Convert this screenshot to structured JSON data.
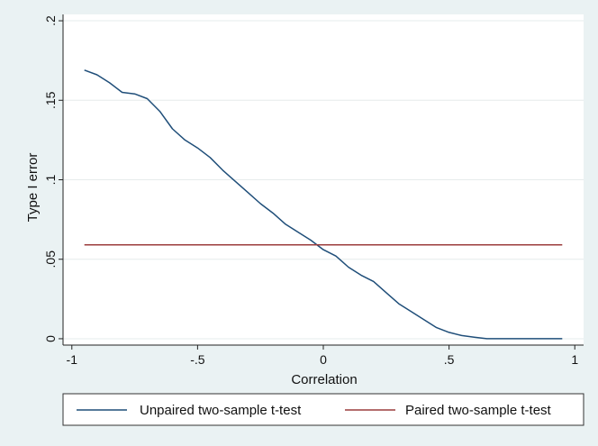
{
  "chart_data": {
    "type": "line",
    "xlabel": "Correlation",
    "ylabel": "Type I error",
    "xlim": [
      -1,
      1
    ],
    "ylim": [
      0,
      0.2
    ],
    "x_ticks": [
      -1,
      -0.5,
      0,
      0.5,
      1
    ],
    "x_tick_labels": [
      "-1",
      "-.5",
      "0",
      ".5",
      "1"
    ],
    "y_ticks": [
      0,
      0.05,
      0.1,
      0.15,
      0.2
    ],
    "y_tick_labels": [
      "0",
      ".05",
      ".1",
      ".15",
      ".2"
    ],
    "grid": "horizontal",
    "legend_position": "bottom",
    "series": [
      {
        "name": "Unpaired two-sample t-test",
        "color": "#1f4e79",
        "x": [
          -0.95,
          -0.9,
          -0.85,
          -0.8,
          -0.75,
          -0.7,
          -0.65,
          -0.6,
          -0.55,
          -0.5,
          -0.45,
          -0.4,
          -0.35,
          -0.3,
          -0.25,
          -0.2,
          -0.15,
          -0.1,
          -0.05,
          0,
          0.05,
          0.1,
          0.15,
          0.2,
          0.25,
          0.3,
          0.35,
          0.4,
          0.45,
          0.5,
          0.55,
          0.6,
          0.65,
          0.7,
          0.75,
          0.8,
          0.85,
          0.9,
          0.95
        ],
        "values": [
          0.169,
          0.166,
          0.161,
          0.155,
          0.154,
          0.151,
          0.143,
          0.132,
          0.125,
          0.12,
          0.114,
          0.106,
          0.099,
          0.092,
          0.085,
          0.079,
          0.072,
          0.067,
          0.062,
          0.056,
          0.052,
          0.045,
          0.04,
          0.036,
          0.029,
          0.022,
          0.017,
          0.012,
          0.007,
          0.004,
          0.002,
          0.001,
          0.0,
          0.0,
          0.0,
          0.0,
          0.0,
          0.0,
          0.0
        ]
      },
      {
        "name": "Paired two-sample t-test",
        "color": "#9b3d3d",
        "x": [
          -0.95,
          0.95
        ],
        "values": [
          0.059,
          0.059
        ]
      }
    ]
  }
}
